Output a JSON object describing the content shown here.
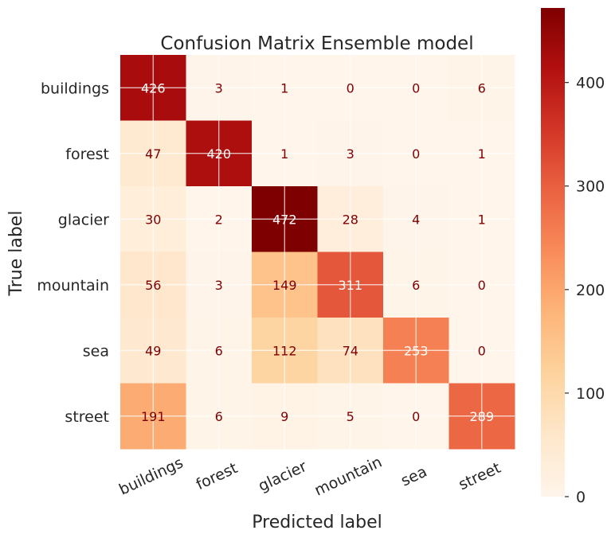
{
  "chart_data": {
    "type": "heatmap",
    "title": "Confusion Matrix Ensemble model",
    "xlabel": "Predicted label",
    "ylabel": "True label",
    "x_categories": [
      "buildings",
      "forest",
      "glacier",
      "mountain",
      "sea",
      "street"
    ],
    "y_categories": [
      "buildings",
      "forest",
      "glacier",
      "mountain",
      "sea",
      "street"
    ],
    "values": [
      [
        426,
        3,
        1,
        0,
        0,
        6
      ],
      [
        47,
        420,
        1,
        3,
        0,
        1
      ],
      [
        30,
        2,
        472,
        28,
        4,
        1
      ],
      [
        56,
        3,
        149,
        311,
        6,
        0
      ],
      [
        49,
        6,
        112,
        74,
        253,
        0
      ],
      [
        191,
        6,
        9,
        5,
        0,
        289
      ]
    ],
    "colormap": "OrRd",
    "colorbar": {
      "min": 0,
      "max": 472,
      "ticks": [
        0,
        100,
        200,
        300,
        400
      ]
    },
    "grid": true
  }
}
